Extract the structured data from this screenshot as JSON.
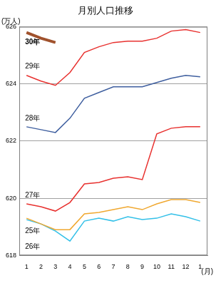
{
  "chart_data": {
    "type": "line",
    "title": "月別人口推移",
    "y_label": "(万人)",
    "x_label": "(月)",
    "categories": [
      "1",
      "2",
      "3",
      "4",
      "5",
      "6",
      "7",
      "8",
      "9",
      "10",
      "11",
      "12",
      "1"
    ],
    "series": [
      {
        "name": "30年",
        "color": "#a0522d",
        "values": [
          625.8,
          625.6,
          625.45,
          null,
          null,
          null,
          null,
          null,
          null,
          null,
          null,
          null,
          null
        ]
      },
      {
        "name": "29年",
        "color": "#e8312f",
        "values": [
          624.3,
          624.1,
          623.95,
          624.4,
          625.1,
          625.3,
          625.45,
          625.5,
          625.5,
          625.6,
          625.85,
          625.9,
          625.8
        ]
      },
      {
        "name": "28年",
        "color": "#3f5f9f",
        "values": [
          622.5,
          622.4,
          622.3,
          622.8,
          623.5,
          623.7,
          623.9,
          623.9,
          623.9,
          624.05,
          624.2,
          624.3,
          624.25
        ]
      },
      {
        "name": "27年",
        "color": "#e8312f",
        "values": [
          619.8,
          619.7,
          619.55,
          619.85,
          620.5,
          620.55,
          620.7,
          620.75,
          620.65,
          622.25,
          622.45,
          622.5,
          622.5
        ]
      },
      {
        "name": "25年",
        "color": "#f0a830",
        "values": [
          619.3,
          619.1,
          618.9,
          618.9,
          619.45,
          619.5,
          619.6,
          619.7,
          619.6,
          619.8,
          619.95,
          619.95,
          619.85
        ]
      },
      {
        "name": "26年",
        "color": "#33c0e8",
        "values": [
          619.25,
          619.1,
          618.85,
          618.5,
          619.2,
          619.3,
          619.2,
          619.35,
          619.25,
          619.3,
          619.45,
          619.35,
          619.2
        ]
      }
    ],
    "ylim": [
      618,
      626
    ],
    "yticks": [
      618,
      620,
      622,
      624,
      626
    ],
    "grid": true
  }
}
